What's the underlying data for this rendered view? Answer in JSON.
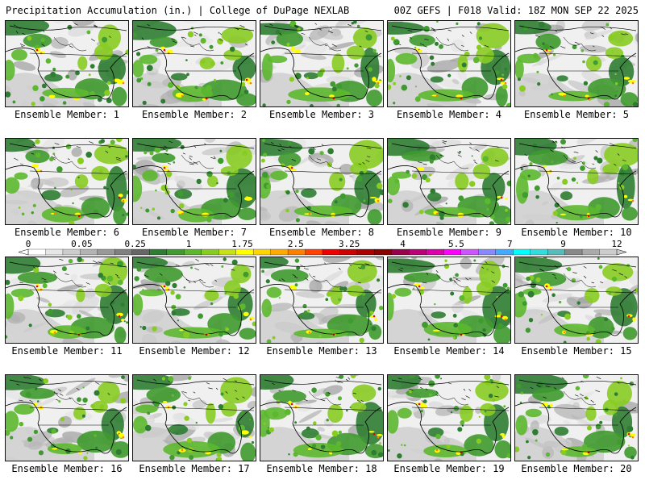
{
  "header": {
    "left_title": "Precipitation Accumulation (in.) | College of DuPage NEXLAB",
    "right_title": "00Z GEFS | F018 Valid: 18Z MON SEP 22 2025"
  },
  "members": [
    {
      "label": "Ensemble Member: 1"
    },
    {
      "label": "Ensemble Member: 2"
    },
    {
      "label": "Ensemble Member: 3"
    },
    {
      "label": "Ensemble Member: 4"
    },
    {
      "label": "Ensemble Member: 5"
    },
    {
      "label": "Ensemble Member: 6"
    },
    {
      "label": "Ensemble Member: 7"
    },
    {
      "label": "Ensemble Member: 8"
    },
    {
      "label": "Ensemble Member: 9"
    },
    {
      "label": "Ensemble Member: 10"
    },
    {
      "label": "Ensemble Member: 11"
    },
    {
      "label": "Ensemble Member: 12"
    },
    {
      "label": "Ensemble Member: 13"
    },
    {
      "label": "Ensemble Member: 14"
    },
    {
      "label": "Ensemble Member: 15"
    },
    {
      "label": "Ensemble Member: 16"
    },
    {
      "label": "Ensemble Member: 17"
    },
    {
      "label": "Ensemble Member: 18"
    },
    {
      "label": "Ensemble Member: 19"
    },
    {
      "label": "Ensemble Member: 20"
    }
  ],
  "legend": {
    "tick_labels": [
      "0",
      "0.05",
      "0.25",
      "1",
      "1.75",
      "2.5",
      "3.25",
      "4",
      "5.5",
      "7",
      "9",
      "12"
    ],
    "colors": [
      "#ffffff",
      "#e6e6e6",
      "#cccccc",
      "#b3b3b3",
      "#999999",
      "#808080",
      "#666666",
      "#2e7d32",
      "#3f9a2f",
      "#5cb82e",
      "#88cc22",
      "#c8e016",
      "#ffff00",
      "#ffd500",
      "#ffaa00",
      "#ff7f00",
      "#ff4000",
      "#ee0000",
      "#cc0000",
      "#aa0000",
      "#880000",
      "#99004c",
      "#bb0077",
      "#dd00aa",
      "#ff00ff",
      "#cc55ff",
      "#8888ff",
      "#44aaff",
      "#00ffff",
      "#33dddd",
      "#55bbbb",
      "#888888",
      "#aaaaaa",
      "#cccccc"
    ]
  }
}
